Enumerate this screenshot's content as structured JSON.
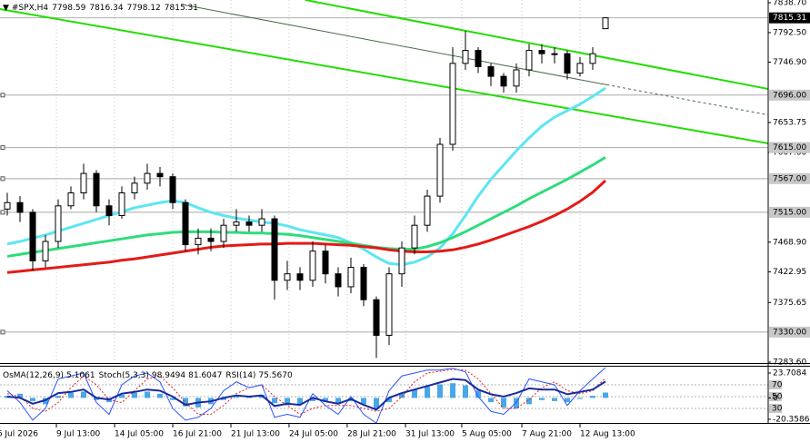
{
  "chart_data": [
    {
      "type": "candlestick",
      "symbol": "#SPX,H4",
      "header": {
        "open": 7798.59,
        "high": 7816.34,
        "low": 7798.12,
        "close": 7815.31
      },
      "open": [
        7520,
        7530,
        7515,
        7440,
        7470,
        7525,
        7545,
        7575,
        7525,
        7510,
        7545,
        7560,
        7575,
        7570,
        7530,
        7465,
        7475,
        7470,
        7495,
        7500,
        7495,
        7505,
        7410,
        7420,
        7410,
        7455,
        7420,
        7400,
        7430,
        7380,
        7325,
        7420,
        7460,
        7495,
        7540,
        7620,
        7745,
        7765,
        7740,
        7725,
        7710,
        7735,
        7765,
        7760,
        7760,
        7730,
        7745,
        7798.59
      ],
      "high": [
        7545,
        7540,
        7520,
        7480,
        7535,
        7555,
        7590,
        7580,
        7535,
        7555,
        7570,
        7590,
        7585,
        7575,
        7535,
        7490,
        7490,
        7505,
        7520,
        7510,
        7520,
        7510,
        7440,
        7430,
        7470,
        7465,
        7430,
        7445,
        7435,
        7385,
        7430,
        7470,
        7510,
        7550,
        7630,
        7770,
        7795,
        7770,
        7745,
        7730,
        7745,
        7775,
        7775,
        7770,
        7765,
        7755,
        7770,
        7816.34
      ],
      "low": [
        7510,
        7500,
        7425,
        7430,
        7460,
        7520,
        7535,
        7515,
        7495,
        7505,
        7535,
        7550,
        7555,
        7520,
        7455,
        7450,
        7455,
        7460,
        7485,
        7485,
        7485,
        7380,
        7395,
        7395,
        7400,
        7405,
        7385,
        7390,
        7370,
        7290,
        7310,
        7400,
        7450,
        7485,
        7530,
        7610,
        7735,
        7730,
        7710,
        7700,
        7700,
        7725,
        7745,
        7745,
        7720,
        7725,
        7735,
        7798.12
      ],
      "close": [
        7530,
        7515,
        7440,
        7470,
        7525,
        7545,
        7575,
        7525,
        7510,
        7545,
        7560,
        7575,
        7570,
        7530,
        7465,
        7475,
        7470,
        7495,
        7500,
        7495,
        7505,
        7410,
        7420,
        7410,
        7455,
        7420,
        7400,
        7430,
        7380,
        7325,
        7420,
        7460,
        7495,
        7540,
        7620,
        7745,
        7765,
        7740,
        7725,
        7710,
        7735,
        7765,
        7760,
        7760,
        7730,
        7745,
        7760,
        7815.31
      ],
      "bull_color": "#ffffff",
      "bear_color": "#000000",
      "moving_averages": [
        {
          "color": "#5ce6f2",
          "values": [
            7466,
            7470,
            7475,
            7480,
            7486,
            7492,
            7498,
            7504,
            7510,
            7516,
            7522,
            7526,
            7530,
            7533,
            7530,
            7522,
            7515,
            7510,
            7506,
            7503,
            7500,
            7498,
            7494,
            7488,
            7484,
            7480,
            7476,
            7468,
            7458,
            7446,
            7436,
            7434,
            7438,
            7446,
            7460,
            7482,
            7510,
            7540,
            7566,
            7588,
            7610,
            7630,
            7648,
            7662,
            7672,
            7682,
            7694,
            7707
          ]
        },
        {
          "color": "#2fdc7c",
          "values": [
            7447,
            7450,
            7453,
            7456,
            7459,
            7462,
            7465,
            7468,
            7471,
            7474,
            7477,
            7480,
            7482,
            7484,
            7485,
            7485,
            7485,
            7484,
            7484,
            7483,
            7483,
            7482,
            7481,
            7479,
            7476,
            7473,
            7470,
            7467,
            7464,
            7461,
            7459,
            7458,
            7458,
            7462,
            7468,
            7476,
            7485,
            7495,
            7505,
            7515,
            7525,
            7536,
            7546,
            7556,
            7566,
            7577,
            7588,
            7600
          ]
        },
        {
          "color": "#e31b17",
          "values": [
            7422,
            7424,
            7426,
            7428,
            7430,
            7432,
            7434,
            7436,
            7438,
            7441,
            7443,
            7446,
            7449,
            7452,
            7455,
            7458,
            7461,
            7463,
            7464,
            7465,
            7466,
            7466,
            7467,
            7467,
            7467,
            7466,
            7465,
            7464,
            7462,
            7460,
            7457,
            7455,
            7454,
            7454,
            7455,
            7457,
            7461,
            7466,
            7472,
            7479,
            7486,
            7493,
            7501,
            7510,
            7520,
            7532,
            7546,
            7564
          ]
        }
      ],
      "trendlines": [
        {
          "color": "#22dd00",
          "x": [
            23.4,
            59.8
          ],
          "y": [
            7843,
            7705.5
          ],
          "dash_from": 1
        },
        {
          "color": "#22dd00",
          "x": [
            -0.6,
            59.8
          ],
          "y": [
            7829,
            7621.4
          ],
          "dash_from": 1
        },
        {
          "color": "#4a6a4a",
          "x": [
            13.7,
            47.1,
            59.8
          ],
          "y": [
            7836,
            7712,
            7665.5
          ],
          "dash_from": 1
        }
      ],
      "levels": [
        {
          "value": 7696,
          "label": "7696.00"
        },
        {
          "value": 7615,
          "label": "7615.00"
        },
        {
          "value": 7567,
          "label": "7567.00"
        },
        {
          "value": 7515,
          "label": "7515.00"
        },
        {
          "value": 7330,
          "label": "7330.00"
        }
      ],
      "level_color": "#a8a8a8",
      "ylim": [
        7283.6,
        7838.7
      ],
      "yticks": [
        {
          "value": 7838.7,
          "label": "7838.70"
        },
        {
          "value": 7792.5,
          "label": "7792.50"
        },
        {
          "value": 7746.9,
          "label": "7746.90"
        },
        7653.75,
        {
          "value": 7607.6,
          "label": "7607.60"
        },
        {
          "value": 7468.9,
          "label": "7468.90"
        },
        7422.95,
        7375.65,
        {
          "value": 7283.6,
          "label": "7283.60"
        }
      ],
      "xticks": [
        {
          "value": -0.8,
          "label": "6 Jul 2026"
        },
        {
          "value": 3.86,
          "label": "9 Jul 13:00"
        },
        {
          "value": 8.43,
          "label": "14 Jul 05:00"
        },
        {
          "value": 13,
          "label": "16 Jul 21:00"
        },
        {
          "value": 17.57,
          "label": "21 Jul 13:00"
        },
        {
          "value": 22.14,
          "label": "24 Jul 05:00"
        },
        {
          "value": 26.71,
          "label": "28 Jul 21:00"
        },
        {
          "value": 31.29,
          "label": "31 Jul 13:00"
        },
        {
          "value": 35.71,
          "label": "5 Aug 05:00"
        },
        {
          "value": 40.43,
          "label": "7 Aug 21:00"
        },
        {
          "value": 45,
          "label": "12 Aug 13:00"
        }
      ]
    },
    {
      "type": "oscillator",
      "osma": {
        "name": "OsMA(12,26,9)",
        "color": "#48a8e6",
        "values": [
          2,
          4,
          -3,
          -6,
          2,
          5,
          6,
          -2,
          -4,
          3,
          5,
          6,
          4,
          -2,
          -8,
          -9,
          -6,
          -2,
          1,
          2,
          3,
          -5,
          -7,
          -6,
          -3,
          -4,
          -5,
          -3,
          -6,
          -10,
          -4,
          4,
          8,
          11,
          13,
          14,
          12,
          7,
          -4,
          -9,
          -10,
          -6,
          -2,
          -3,
          -4,
          -1,
          2,
          5.1061
        ]
      },
      "stoch": {
        "name": "Stoch(5,3,3)",
        "main": {
          "color": "#2b55ff",
          "values": [
            60,
            40,
            10,
            30,
            80,
            85,
            90,
            40,
            20,
            70,
            85,
            90,
            75,
            30,
            10,
            15,
            30,
            60,
            75,
            65,
            70,
            15,
            20,
            15,
            55,
            35,
            20,
            50,
            20,
            5,
            60,
            85,
            90,
            95,
            95,
            98,
            92,
            50,
            25,
            20,
            40,
            80,
            75,
            70,
            35,
            60,
            80,
            98.9494
          ]
        },
        "signal": {
          "color": "#e02020",
          "values": [
            55,
            50,
            30,
            25,
            40,
            65,
            85,
            70,
            45,
            40,
            60,
            80,
            85,
            65,
            40,
            20,
            20,
            35,
            55,
            65,
            70,
            50,
            35,
            20,
            30,
            35,
            35,
            35,
            30,
            25,
            30,
            50,
            75,
            90,
            93,
            96,
            95,
            80,
            55,
            30,
            30,
            45,
            65,
            75,
            60,
            55,
            60,
            81.6047
          ]
        }
      },
      "rsi": {
        "name": "RSI(14)",
        "color": "#1a2a9c",
        "values": [
          50,
          48,
          38,
          44,
          56,
          58,
          62,
          48,
          45,
          55,
          58,
          62,
          60,
          50,
          36,
          40,
          42,
          48,
          52,
          50,
          52,
          34,
          38,
          36,
          48,
          42,
          38,
          46,
          36,
          28,
          48,
          56,
          62,
          68,
          74,
          80,
          78,
          62,
          54,
          50,
          56,
          64,
          62,
          62,
          54,
          58,
          62,
          75.567
        ],
        "value_labels": {
          "47": "75.5670"
        }
      },
      "ylim": [
        -20.3586,
        23.7084
      ],
      "yticks": [
        23.7084,
        0,
        -20.3586
      ],
      "y2lim": [
        0,
        100
      ],
      "y2ticks": [
        70,
        50,
        30
      ]
    }
  ]
}
